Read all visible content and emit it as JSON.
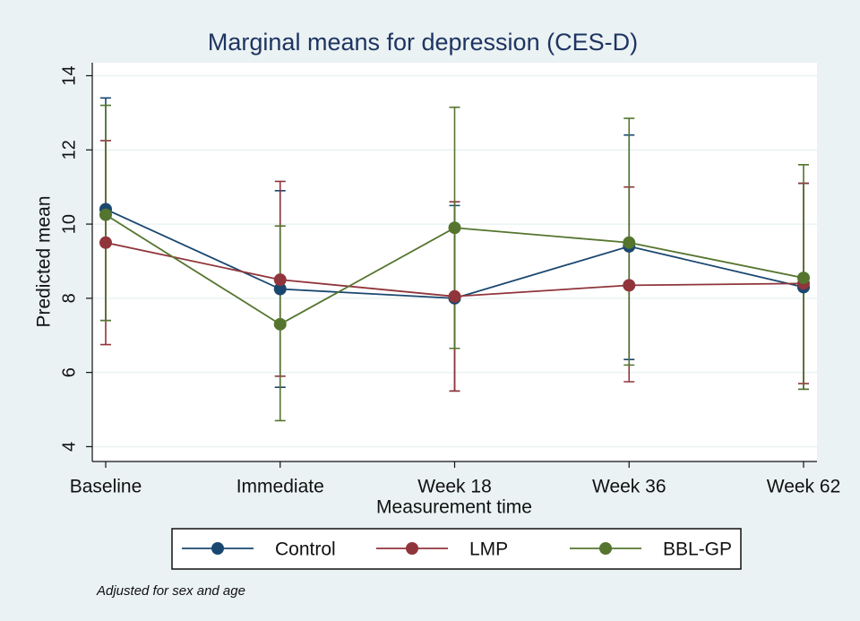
{
  "chart_data": {
    "type": "line",
    "title": "Marginal means for depression (CES-D)",
    "xlabel": "Measurement time",
    "ylabel": "Predicted mean",
    "note": "Adjusted for sex and age",
    "categories": [
      "Baseline",
      "Immediate",
      "Week 18",
      "Week 36",
      "Week 62"
    ],
    "series": [
      {
        "name": "Control",
        "color": "#1a476f",
        "values": [
          10.4,
          8.25,
          8.0,
          9.4,
          8.3
        ],
        "lower": [
          7.4,
          5.6,
          5.5,
          6.35,
          5.55
        ],
        "upper": [
          13.4,
          10.9,
          10.5,
          12.4,
          11.1
        ]
      },
      {
        "name": "LMP",
        "color": "#90353b",
        "values": [
          9.5,
          8.5,
          8.05,
          8.35,
          8.4
        ],
        "lower": [
          6.75,
          5.9,
          5.5,
          5.75,
          5.7
        ],
        "upper": [
          12.25,
          11.15,
          10.6,
          11.0,
          11.1
        ]
      },
      {
        "name": "BBL-GP",
        "color": "#55752f",
        "values": [
          10.25,
          7.3,
          9.9,
          9.5,
          8.55
        ],
        "lower": [
          7.4,
          4.7,
          6.65,
          6.2,
          5.55
        ],
        "upper": [
          13.2,
          9.95,
          13.15,
          12.85,
          11.6
        ]
      }
    ],
    "ylim": [
      3.6,
      14.35
    ],
    "yticks": [
      4,
      6,
      8,
      10,
      12,
      14
    ],
    "grid": true,
    "legend": "bottom"
  }
}
